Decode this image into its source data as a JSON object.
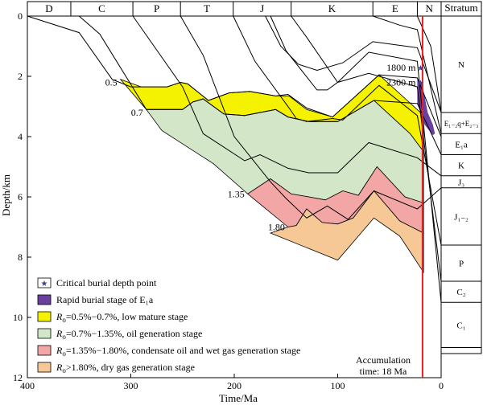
{
  "chart_data": {
    "type": "area",
    "xlabel": "Time/Ma",
    "ylabel": "Depth/km",
    "xlim": [
      400,
      0
    ],
    "ylim": [
      0,
      12
    ],
    "xticks": [
      "400",
      "300",
      "200",
      "100",
      "0"
    ],
    "yticks": [
      "0",
      "2",
      "4",
      "6",
      "8",
      "10",
      "12"
    ],
    "periods": [
      {
        "label": "D",
        "start": 400,
        "end": 358
      },
      {
        "label": "C",
        "start": 358,
        "end": 298
      },
      {
        "label": "P",
        "start": 298,
        "end": 252
      },
      {
        "label": "T",
        "start": 252,
        "end": 201
      },
      {
        "label": "J",
        "start": 201,
        "end": 145
      },
      {
        "label": "K",
        "start": 145,
        "end": 66
      },
      {
        "label": "E",
        "start": 66,
        "end": 23
      },
      {
        "label": "N",
        "start": 23,
        "end": 0
      }
    ],
    "stratum_column": {
      "header": "Stratum",
      "units": [
        {
          "label": "N",
          "top": 0,
          "bottom": 3.2
        },
        {
          "label": "E₁₋₂q+E₂₋₃",
          "top": 3.2,
          "bottom": 3.9
        },
        {
          "label": "E₁a",
          "top": 3.9,
          "bottom": 4.6
        },
        {
          "label": "K",
          "top": 4.6,
          "bottom": 5.3
        },
        {
          "label": "J₃",
          "top": 5.3,
          "bottom": 5.7
        },
        {
          "label": "J₁₋₂",
          "top": 5.7,
          "bottom": 7.6
        },
        {
          "label": "P",
          "top": 7.6,
          "bottom": 8.8
        },
        {
          "label": "C₂",
          "top": 8.8,
          "bottom": 9.5
        },
        {
          "label": "C₁",
          "top": 9.5,
          "bottom": 11
        }
      ]
    },
    "maturity_labels": [
      {
        "text": "0.5",
        "x": 310,
        "y": 2.2
      },
      {
        "text": "0.7",
        "x": 285,
        "y": 3.2
      },
      {
        "text": "1.35",
        "x": 187,
        "y": 5.9
      },
      {
        "text": "1.80",
        "x": 148,
        "y": 7.0
      }
    ],
    "critical_points": [
      {
        "label": "1800 m",
        "time": 23,
        "depth": 1.7
      },
      {
        "label": "2300 m",
        "time": 23,
        "depth": 2.2
      }
    ],
    "accumulation": {
      "time": 18,
      "label_line1": "Accumulation",
      "label_line2": "time: 18 Ma"
    },
    "zones": [
      {
        "name": "Ro=0.5%−0.7%, low mature stage",
        "color": "#f5f200",
        "upper": [
          [
            310,
            2.1
          ],
          [
            290,
            2.35
          ],
          [
            265,
            2.35
          ],
          [
            252,
            2.2
          ],
          [
            245,
            2.25
          ],
          [
            225,
            2.8
          ],
          [
            205,
            2.55
          ],
          [
            185,
            2.5
          ],
          [
            160,
            2.65
          ],
          [
            147,
            2.65
          ],
          [
            130,
            3.1
          ],
          [
            105,
            3.35
          ],
          [
            60,
            1.95
          ],
          [
            20,
            3.2
          ],
          [
            17,
            3.6
          ]
        ],
        "lower": [
          [
            285,
            3.1
          ],
          [
            250,
            3.1
          ],
          [
            240,
            2.85
          ],
          [
            230,
            2.75
          ],
          [
            210,
            3.25
          ],
          [
            190,
            3.3
          ],
          [
            160,
            3.1
          ],
          [
            148,
            3.35
          ],
          [
            128,
            3.5
          ],
          [
            100,
            3.5
          ],
          [
            65,
            2.8
          ],
          [
            30,
            3.9
          ],
          [
            17,
            4.5
          ]
        ]
      },
      {
        "name": "Ro=0.7%−1.35%, oil generation stage",
        "color": "#d3e6c8",
        "upper": [
          [
            285,
            3.1
          ],
          [
            250,
            3.1
          ],
          [
            240,
            2.85
          ],
          [
            230,
            2.75
          ],
          [
            210,
            3.25
          ],
          [
            190,
            3.3
          ],
          [
            160,
            3.1
          ],
          [
            148,
            3.35
          ],
          [
            128,
            3.5
          ],
          [
            100,
            3.5
          ],
          [
            65,
            2.8
          ],
          [
            30,
            3.9
          ],
          [
            17,
            4.5
          ]
        ],
        "lower": [
          [
            270,
            3.8
          ],
          [
            220,
            4.9
          ],
          [
            187,
            5.9
          ],
          [
            165,
            5.4
          ],
          [
            145,
            5.9
          ],
          [
            128,
            6.0
          ],
          [
            112,
            6.1
          ],
          [
            95,
            5.8
          ],
          [
            80,
            5.95
          ],
          [
            62,
            5.0
          ],
          [
            35,
            6.0
          ],
          [
            17,
            6.2
          ]
        ]
      },
      {
        "name": "Ro=1.35%−1.80%, condensate oil and wet gas generation stage",
        "color": "#f2a7a6",
        "upper": [
          [
            187,
            5.9
          ],
          [
            165,
            5.4
          ],
          [
            145,
            5.9
          ],
          [
            128,
            6.0
          ],
          [
            112,
            6.1
          ],
          [
            95,
            5.8
          ],
          [
            80,
            5.95
          ],
          [
            62,
            5.0
          ],
          [
            35,
            6.0
          ],
          [
            17,
            6.2
          ]
        ],
        "lower": [
          [
            148,
            7.0
          ],
          [
            140,
            6.95
          ],
          [
            130,
            6.4
          ],
          [
            115,
            6.85
          ],
          [
            100,
            6.9
          ],
          [
            85,
            6.7
          ],
          [
            65,
            5.8
          ],
          [
            40,
            6.8
          ],
          [
            17,
            7.2
          ]
        ]
      },
      {
        "name": "Ro>1.80%, dry gas generation stage",
        "color": "#f5c895",
        "upper": [
          [
            148,
            7.0
          ],
          [
            140,
            6.95
          ],
          [
            130,
            6.4
          ],
          [
            115,
            6.85
          ],
          [
            100,
            6.9
          ],
          [
            85,
            6.7
          ],
          [
            65,
            5.8
          ],
          [
            40,
            6.8
          ],
          [
            17,
            7.2
          ]
        ],
        "lower": [
          [
            165,
            7.2
          ],
          [
            100,
            8.1
          ],
          [
            65,
            6.7
          ],
          [
            40,
            7.3
          ],
          [
            17,
            8.5
          ]
        ]
      }
    ],
    "rapid_burial": {
      "color": "#6b3fa0",
      "polygon": [
        [
          23,
          2.05
        ],
        [
          18,
          2.3
        ],
        [
          13,
          3.2
        ],
        [
          8,
          3.6
        ],
        [
          6,
          3.9
        ],
        [
          8,
          3.95
        ],
        [
          16,
          3.6
        ],
        [
          23,
          2.9
        ]
      ]
    },
    "burial_curves": [
      [
        [
          400,
          0
        ],
        [
          350,
          0.55
        ],
        [
          318,
          2.1
        ],
        [
          300,
          2.35
        ],
        [
          265,
          2.35
        ],
        [
          252,
          2.2
        ],
        [
          245,
          2.25
        ],
        [
          225,
          2.8
        ],
        [
          205,
          2.55
        ],
        [
          185,
          2.5
        ],
        [
          160,
          2.65
        ],
        [
          148,
          2.6
        ],
        [
          130,
          3.05
        ],
        [
          105,
          3.35
        ],
        [
          60,
          1.95
        ],
        [
          23,
          2.05
        ],
        [
          0,
          4.0
        ]
      ],
      [
        [
          350,
          0
        ],
        [
          330,
          0.6
        ],
        [
          285,
          3.1
        ],
        [
          250,
          3.1
        ],
        [
          240,
          2.85
        ],
        [
          230,
          2.75
        ],
        [
          210,
          3.25
        ],
        [
          190,
          3.3
        ],
        [
          160,
          3.1
        ],
        [
          148,
          3.35
        ],
        [
          128,
          3.5
        ],
        [
          100,
          3.5
        ],
        [
          65,
          2.8
        ],
        [
          23,
          2.9
        ],
        [
          0,
          4.6
        ]
      ],
      [
        [
          298,
          0
        ],
        [
          250,
          2.35
        ],
        [
          230,
          3.9
        ],
        [
          190,
          4.8
        ],
        [
          175,
          4.6
        ],
        [
          148,
          5.05
        ],
        [
          128,
          5.2
        ],
        [
          100,
          5.2
        ],
        [
          70,
          4.2
        ],
        [
          23,
          4.7
        ],
        [
          0,
          5.3
        ]
      ],
      [
        [
          252,
          0
        ],
        [
          230,
          1.3
        ],
        [
          200,
          4.0
        ],
        [
          165,
          5.5
        ],
        [
          150,
          6.05
        ],
        [
          130,
          6.7
        ],
        [
          110,
          6.3
        ],
        [
          90,
          6.75
        ],
        [
          65,
          5.8
        ],
        [
          23,
          6.4
        ],
        [
          0,
          5.7
        ]
      ],
      [
        [
          201,
          0
        ],
        [
          180,
          1.5
        ],
        [
          147,
          3.05
        ],
        [
          140,
          3.4
        ],
        [
          130,
          3.5
        ],
        [
          105,
          3.4
        ],
        [
          95,
          3.45
        ],
        [
          60,
          2.3
        ],
        [
          23,
          3.3
        ],
        [
          0,
          7.6
        ]
      ],
      [
        [
          165,
          0
        ],
        [
          150,
          1.15
        ],
        [
          120,
          2.45
        ],
        [
          110,
          2.45
        ],
        [
          100,
          2.2
        ],
        [
          70,
          1.9
        ],
        [
          23,
          2.35
        ],
        [
          0,
          8.8
        ]
      ],
      [
        [
          145,
          0
        ],
        [
          130,
          0.7
        ],
        [
          100,
          2.2
        ],
        [
          70,
          1.2
        ],
        [
          23,
          1.5
        ],
        [
          0,
          9.5
        ]
      ],
      [
        [
          170,
          0
        ],
        [
          155,
          1.0
        ],
        [
          138,
          1.6
        ],
        [
          120,
          1.8
        ],
        [
          95,
          1.55
        ],
        [
          66,
          0.85
        ],
        [
          23,
          1.05
        ],
        [
          0,
          3.2
        ]
      ],
      [
        [
          66,
          0
        ],
        [
          40,
          0.3
        ],
        [
          23,
          0.45
        ],
        [
          0,
          3.9
        ]
      ],
      [
        [
          23,
          0
        ],
        [
          10,
          1.0
        ],
        [
          0,
          3.2
        ]
      ]
    ]
  },
  "legend": [
    {
      "text": "Critical burial depth point",
      "swatch": "star",
      "color": "#3a3f90"
    },
    {
      "text": "Rapid burial stage of E₁a",
      "swatch": "box",
      "color": "#6b3fa0"
    },
    {
      "text": "Ro=0.5%−0.7%, low mature stage",
      "sub_prefix": "R",
      "sub": "o",
      "rest": "=0.5%−0.7%, low mature stage",
      "swatch": "box",
      "color": "#f5f200"
    },
    {
      "text": "Ro=0.7%−1.35%, oil generation stage",
      "sub_prefix": "R",
      "sub": "o",
      "rest": "=0.7%−1.35%, oil generation stage",
      "swatch": "box",
      "color": "#d3e6c8"
    },
    {
      "text": "Ro=1.35%−1.80%, condensate oil and wet gas generation stage",
      "sub_prefix": "R",
      "sub": "o",
      "rest": "=1.35%−1.80%, condensate oil and wet gas generation stage",
      "swatch": "box",
      "color": "#f2a7a6"
    },
    {
      "text": "Ro>1.80%, dry gas generation stage",
      "sub_prefix": "R",
      "sub": "o",
      "rest": ">1.80%, dry gas generation stage",
      "swatch": "box",
      "color": "#f5c895"
    }
  ],
  "colors": {
    "accumulation_line": "#e02020",
    "star": "#3a3f90"
  }
}
